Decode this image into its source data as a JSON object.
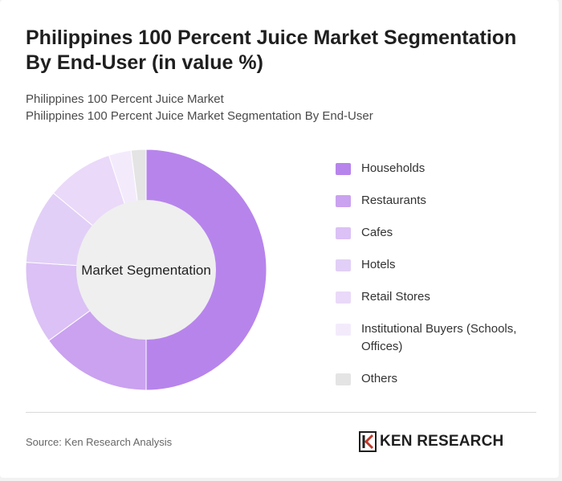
{
  "header": {
    "title": "Philippines 100 Percent Juice Market Segmentation By End-User (in value %)",
    "subtitle_line1": "Philippines 100 Percent Juice Market",
    "subtitle_line2": "Philippines 100 Percent Juice Market Segmentation By End-User"
  },
  "chart_data": {
    "type": "pie",
    "center_label": "Market Segmentation",
    "legend_position": "right",
    "categories": [
      "Households",
      "Restaurants",
      "Cafes",
      "Hotels",
      "Retail Stores",
      "Institutional Buyers (Schools, Offices)",
      "Others"
    ],
    "values": [
      50,
      15,
      11,
      10,
      9,
      3,
      2
    ],
    "colors": [
      "#b784ec",
      "#caa2f0",
      "#dbc1f5",
      "#e2cff7",
      "#ead9f9",
      "#f3ebfc",
      "#e4e4e4"
    ]
  },
  "footer": {
    "source": "Source: Ken Research Analysis",
    "logo_text": "KEN RESEARCH"
  }
}
